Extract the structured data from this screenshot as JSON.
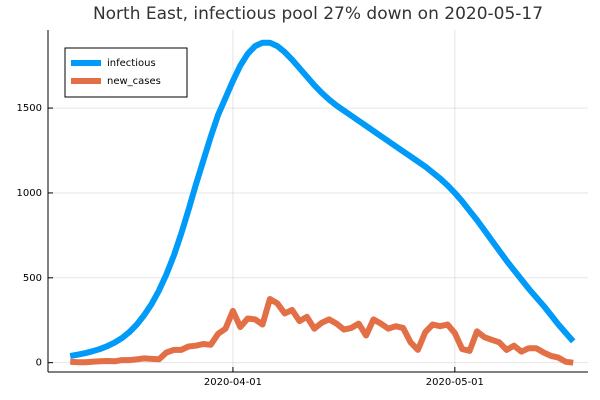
{
  "chart_data": {
    "type": "line",
    "title": "North East, infectious pool 27% down on 2020-05-17",
    "x": [
      "2020-03-10",
      "2020-03-11",
      "2020-03-12",
      "2020-03-13",
      "2020-03-14",
      "2020-03-15",
      "2020-03-16",
      "2020-03-17",
      "2020-03-18",
      "2020-03-19",
      "2020-03-20",
      "2020-03-21",
      "2020-03-22",
      "2020-03-23",
      "2020-03-24",
      "2020-03-25",
      "2020-03-26",
      "2020-03-27",
      "2020-03-28",
      "2020-03-29",
      "2020-03-30",
      "2020-03-31",
      "2020-04-01",
      "2020-04-02",
      "2020-04-03",
      "2020-04-04",
      "2020-04-05",
      "2020-04-06",
      "2020-04-07",
      "2020-04-08",
      "2020-04-09",
      "2020-04-10",
      "2020-04-11",
      "2020-04-12",
      "2020-04-13",
      "2020-04-14",
      "2020-04-15",
      "2020-04-16",
      "2020-04-17",
      "2020-04-18",
      "2020-04-19",
      "2020-04-20",
      "2020-04-21",
      "2020-04-22",
      "2020-04-23",
      "2020-04-24",
      "2020-04-25",
      "2020-04-26",
      "2020-04-27",
      "2020-04-28",
      "2020-04-29",
      "2020-04-30",
      "2020-05-01",
      "2020-05-02",
      "2020-05-03",
      "2020-05-04",
      "2020-05-05",
      "2020-05-06",
      "2020-05-07",
      "2020-05-08",
      "2020-05-09",
      "2020-05-10",
      "2020-05-11",
      "2020-05-12",
      "2020-05-13",
      "2020-05-14",
      "2020-05-15",
      "2020-05-16",
      "2020-05-17"
    ],
    "series": [
      {
        "name": "infectious",
        "color": "#009af9",
        "values": [
          40,
          47,
          56,
          67,
          80,
          97,
          118,
          145,
          180,
          225,
          280,
          345,
          425,
          520,
          630,
          760,
          900,
          1050,
          1190,
          1330,
          1460,
          1560,
          1660,
          1750,
          1820,
          1865,
          1885,
          1885,
          1865,
          1830,
          1785,
          1735,
          1685,
          1635,
          1590,
          1550,
          1515,
          1485,
          1455,
          1425,
          1395,
          1365,
          1335,
          1305,
          1275,
          1245,
          1215,
          1185,
          1155,
          1120,
          1085,
          1045,
          1000,
          950,
          895,
          840,
          780,
          720,
          660,
          600,
          545,
          490,
          435,
          385,
          335,
          280,
          225,
          175,
          125
        ]
      },
      {
        "name": "new_cases",
        "color": "#e26f46",
        "values": [
          5,
          3,
          2,
          5,
          8,
          10,
          8,
          15,
          15,
          20,
          25,
          22,
          20,
          60,
          75,
          75,
          95,
          100,
          110,
          105,
          170,
          200,
          305,
          210,
          260,
          255,
          225,
          375,
          350,
          290,
          310,
          245,
          270,
          200,
          235,
          255,
          230,
          195,
          205,
          230,
          160,
          255,
          230,
          200,
          215,
          205,
          120,
          75,
          180,
          225,
          215,
          225,
          175,
          80,
          70,
          185,
          150,
          135,
          120,
          75,
          100,
          65,
          85,
          85,
          60,
          40,
          30,
          5,
          0
        ]
      }
    ],
    "xlim": [
      "2020-03-07",
      "2020-05-19"
    ],
    "xticks": [
      "2020-04-01",
      "2020-05-01"
    ],
    "ylim": [
      -55,
      1960
    ],
    "yticks": [
      0,
      500,
      1000,
      1500
    ],
    "grid": true,
    "legend": "top-left"
  }
}
